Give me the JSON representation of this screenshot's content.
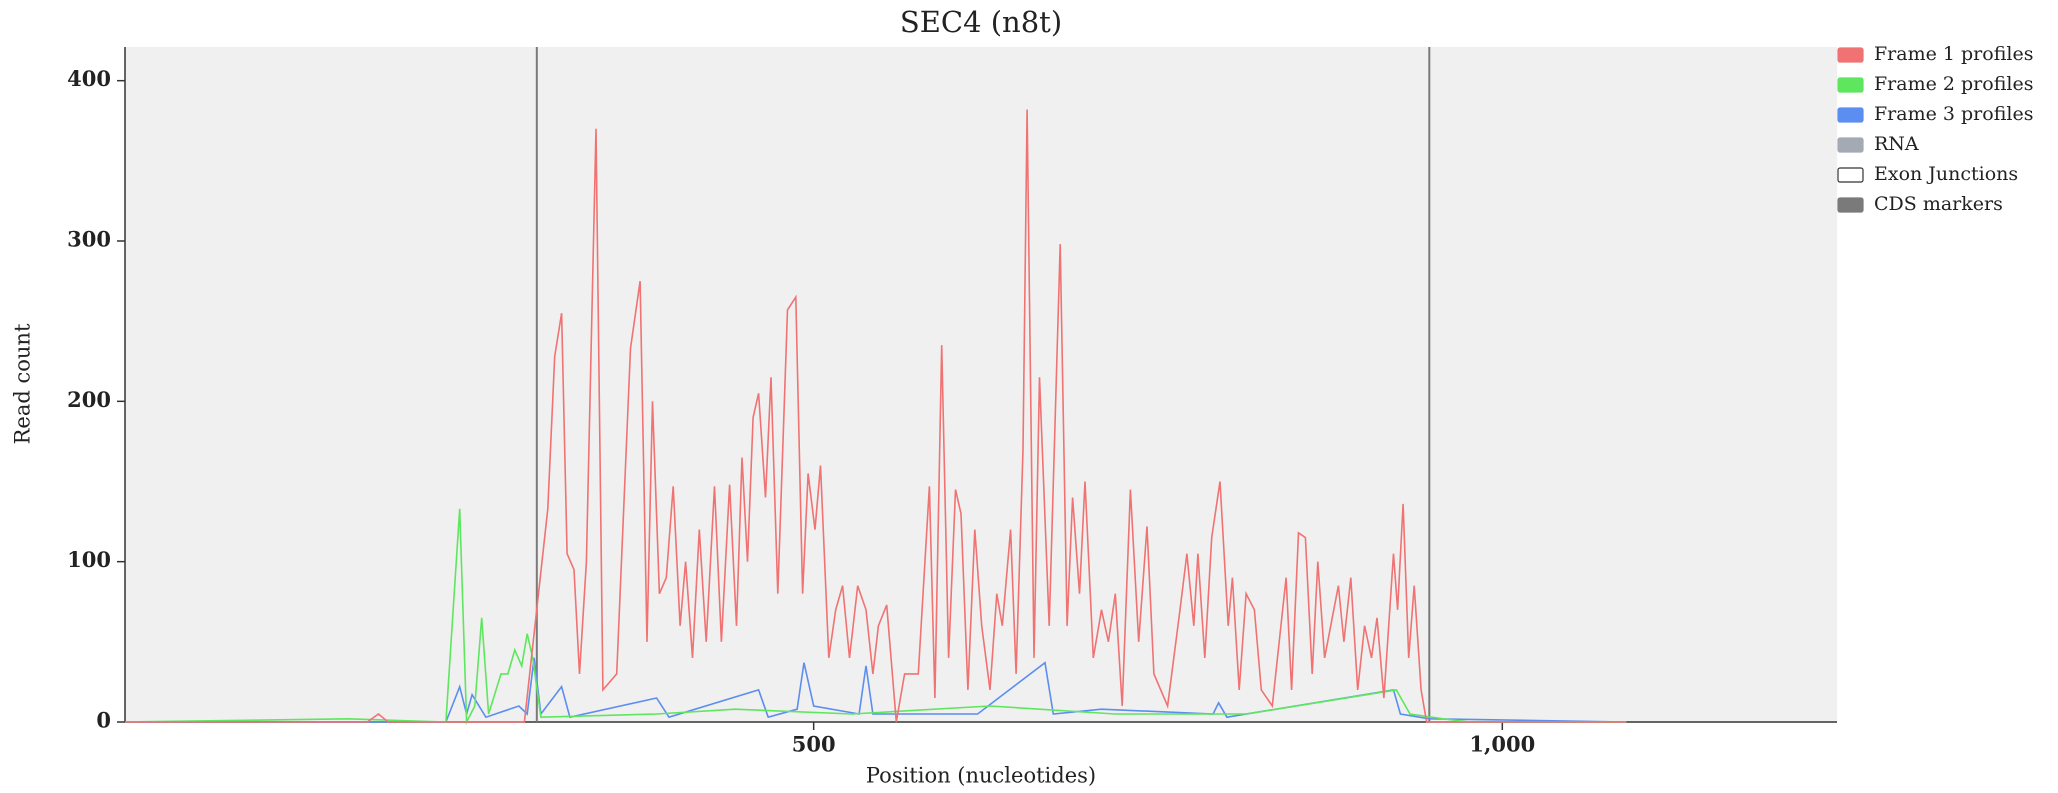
{
  "chart_data": {
    "type": "line",
    "title": "SEC4 (n8t)",
    "x_label": "Position (nucleotides)",
    "y_label": "Read count",
    "xlim": [
      0,
      1243
    ],
    "ylim": [
      0,
      421
    ],
    "xticks": [
      500,
      {
        "value": 1000,
        "label": "1,000"
      }
    ],
    "yticks": [
      0,
      100,
      200,
      300,
      400
    ],
    "cds_markers": [
      299,
      947
    ],
    "cds_color": "#7a7a7a",
    "legend": "outside right",
    "series": [
      {
        "name": "Frame 1 profiles",
        "color": "#f07272",
        "x": [
          0,
          176,
          184,
          191,
          290,
          307,
          312,
          317,
          321,
          326,
          330,
          335,
          342,
          347,
          357,
          367,
          374,
          379,
          383,
          388,
          393,
          398,
          403,
          407,
          412,
          417,
          422,
          428,
          433,
          439,
          444,
          448,
          452,
          456,
          460,
          465,
          469,
          474,
          481,
          487,
          492,
          496,
          501,
          505,
          511,
          516,
          521,
          526,
          532,
          538,
          543,
          547,
          553,
          560,
          566,
          576,
          584,
          588,
          593,
          598,
          603,
          607,
          612,
          617,
          622,
          628,
          633,
          637,
          643,
          647,
          652,
          655,
          660,
          664,
          671,
          679,
          684,
          688,
          693,
          697,
          703,
          709,
          714,
          719,
          724,
          730,
          736,
          742,
          747,
          757,
          766,
          771,
          776,
          779,
          784,
          789,
          795,
          801,
          804,
          809,
          814,
          820,
          825,
          833,
          843,
          847,
          852,
          857,
          862,
          866,
          871,
          881,
          885,
          890,
          895,
          900,
          905,
          909,
          914,
          921,
          924,
          928,
          932,
          936,
          941,
          945,
          957,
          1090
        ],
        "values": [
          0,
          0,
          5,
          0,
          0,
          133,
          228,
          255,
          105,
          95,
          30,
          100,
          370,
          20,
          30,
          233,
          275,
          50,
          200,
          80,
          90,
          147,
          60,
          100,
          40,
          120,
          50,
          147,
          50,
          148,
          60,
          165,
          100,
          190,
          205,
          140,
          215,
          80,
          257,
          265,
          80,
          155,
          120,
          160,
          40,
          70,
          85,
          40,
          85,
          70,
          30,
          60,
          73,
          0,
          30,
          30,
          147,
          15,
          235,
          40,
          145,
          130,
          20,
          120,
          60,
          20,
          80,
          60,
          120,
          30,
          170,
          382,
          40,
          215,
          60,
          298,
          60,
          140,
          80,
          150,
          40,
          70,
          50,
          80,
          10,
          145,
          50,
          122,
          30,
          10,
          70,
          105,
          60,
          105,
          40,
          115,
          150,
          60,
          90,
          20,
          80,
          70,
          20,
          10,
          90,
          20,
          118,
          115,
          30,
          100,
          40,
          85,
          50,
          90,
          20,
          60,
          40,
          65,
          15,
          105,
          70,
          136,
          40,
          85,
          20,
          0,
          0,
          0
        ]
      },
      {
        "name": "Frame 2 profiles",
        "color": "#5ee65e",
        "x": [
          0,
          162,
          233,
          243,
          248,
          254,
          259,
          264,
          273,
          278,
          283,
          288,
          292,
          296,
          302,
          386,
          443,
          528,
          628,
          719,
          814,
          923,
          933,
          957,
          976,
          1090
        ],
        "values": [
          0,
          2,
          0,
          133,
          0,
          10,
          65,
          5,
          30,
          30,
          45,
          35,
          55,
          40,
          3,
          5,
          8,
          5,
          10,
          5,
          5,
          20,
          5,
          2,
          0,
          0
        ]
      },
      {
        "name": "Frame 3 profiles",
        "color": "#5b8ef0",
        "x": [
          0,
          233,
          243,
          248,
          252,
          262,
          286,
          292,
          297,
          302,
          317,
          323,
          386,
          395,
          460,
          467,
          488,
          493,
          500,
          533,
          538,
          543,
          619,
          668,
          674,
          709,
          790,
          794,
          800,
          921,
          926,
          947,
          1090
        ],
        "values": [
          0,
          0,
          22,
          5,
          17,
          3,
          10,
          5,
          40,
          5,
          22,
          3,
          15,
          3,
          20,
          3,
          8,
          37,
          10,
          5,
          35,
          5,
          5,
          37,
          5,
          8,
          5,
          12,
          3,
          20,
          5,
          2,
          0
        ]
      }
    ],
    "extra_legend": [
      {
        "name": "RNA",
        "color": "#a3aab3"
      },
      {
        "name": "Exon Junctions",
        "color": "#ffffff"
      },
      {
        "name": "CDS markers",
        "color": "#7a7a7a"
      }
    ]
  }
}
